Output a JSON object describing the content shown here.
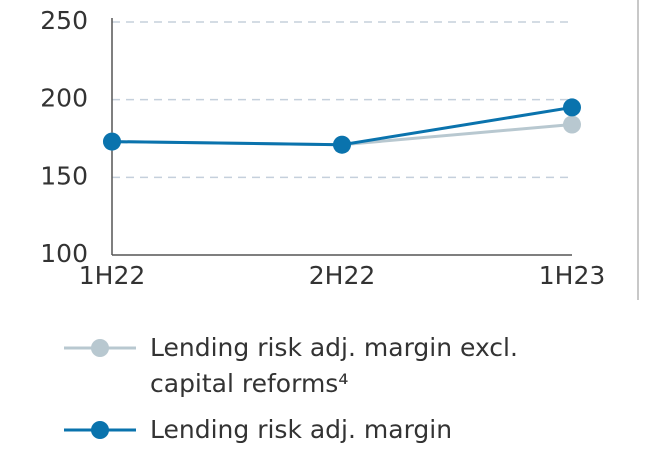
{
  "chart_data": {
    "type": "line",
    "categories": [
      "1H22",
      "2H22",
      "1H23"
    ],
    "series": [
      {
        "name": "Lending risk adj. margin excl. capital reforms⁴",
        "color": "#b8c8d0",
        "values": [
          173,
          171,
          184
        ]
      },
      {
        "name": "Lending risk adj. margin",
        "color": "#0a73ad",
        "values": [
          173,
          171,
          195
        ]
      }
    ],
    "ylim": [
      100,
      250
    ],
    "yticks": [
      100,
      150,
      200,
      250
    ],
    "grid": true
  }
}
